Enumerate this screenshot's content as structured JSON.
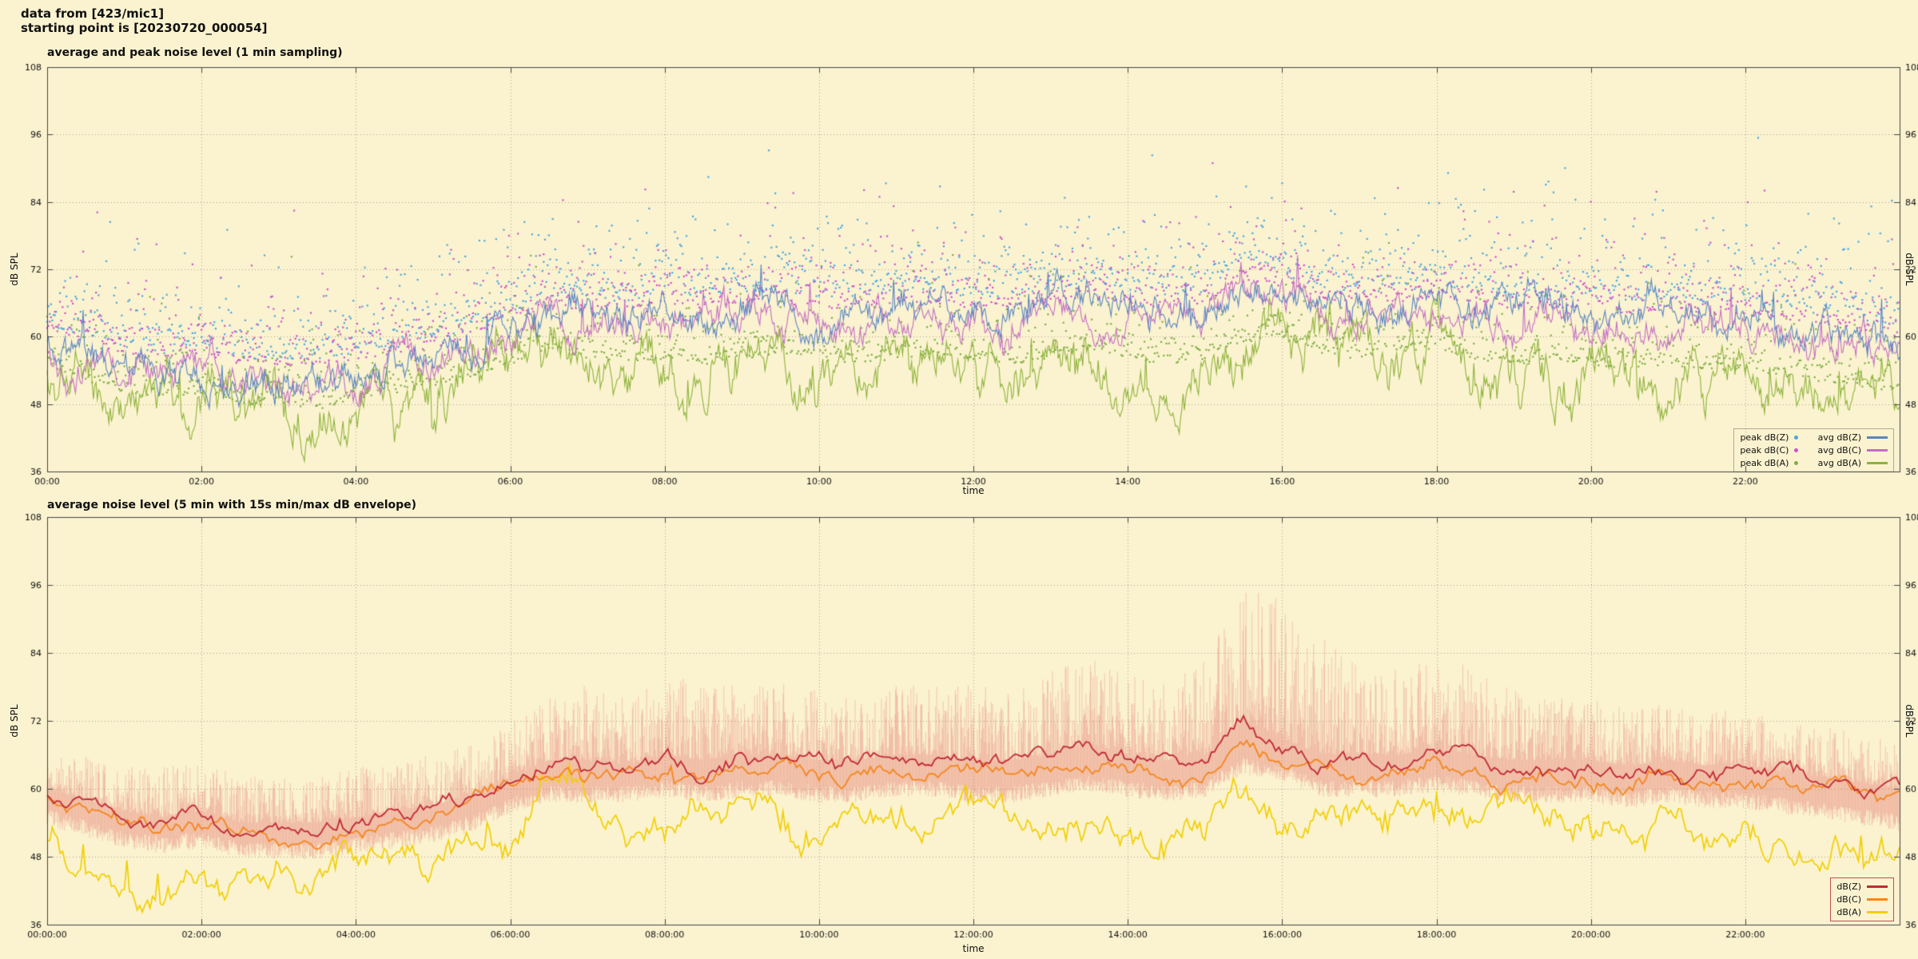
{
  "header": {
    "line1": "data from [423/mic1]",
    "line2": "starting point is [20230720_000054]"
  },
  "colors": {
    "background": "#fbf3d0",
    "grid": "#a8a08a",
    "border": "#444444",
    "text": "#111111",
    "envelope": "rgba(230,115,108,0.30)"
  },
  "chart_data": [
    {
      "type": "line+scatter",
      "title": "average and peak noise level (1 min sampling)",
      "xlabel": "time",
      "ylabel_left": "dB SPL",
      "ylabel_right": "dB SPL",
      "ylim": [
        36,
        108
      ],
      "yticks": [
        36,
        48,
        60,
        72,
        84,
        96,
        108
      ],
      "xlim_hours": [
        0,
        24
      ],
      "xtick_hours": [
        0,
        2,
        4,
        6,
        8,
        10,
        12,
        14,
        16,
        18,
        20,
        22
      ],
      "xtick_labels": [
        "00:00",
        "02:00",
        "04:00",
        "06:00",
        "08:00",
        "10:00",
        "12:00",
        "14:00",
        "16:00",
        "18:00",
        "20:00",
        "22:00"
      ],
      "baseline_step_hours": 0.5,
      "grid": true,
      "legend_position": "bottom-right",
      "legend_columns": [
        [
          "peak dB(Z)",
          "peak dB(C)",
          "peak dB(A)"
        ],
        [
          "avg dB(Z)",
          "avg dB(C)",
          "avg dB(A)"
        ]
      ],
      "series": [
        {
          "name": "peak dB(Z)",
          "kind": "scatter",
          "color": "#4aa7e0",
          "baseline_of": "avg dB(Z)",
          "above_min": 3,
          "tail_scale": 4.5,
          "max": 96,
          "seed": 101
        },
        {
          "name": "peak dB(C)",
          "kind": "scatter",
          "color": "#cc52cc",
          "baseline_of": "avg dB(C)",
          "above_min": 3,
          "tail_scale": 4.0,
          "max": 92,
          "seed": 202
        },
        {
          "name": "peak dB(A)",
          "kind": "scatter",
          "color": "#7fae45",
          "baseline_of": "avg dB(A)",
          "above_min": 2,
          "tail_scale": 3.2,
          "max": 80,
          "seed": 303
        },
        {
          "name": "avg dB(A)",
          "kind": "line",
          "color": "#8db33a",
          "width": 1.1,
          "noise": 2.6,
          "spike_p": 0.02,
          "spike_h": 5,
          "step_min": 1,
          "seed": 33,
          "values": [
            53,
            50,
            48,
            47,
            48,
            46,
            46,
            45,
            47,
            48,
            49,
            51,
            53,
            56,
            54,
            53,
            54,
            53,
            54,
            55,
            54,
            53,
            54,
            55,
            54,
            53,
            54,
            56,
            54,
            53,
            54,
            57,
            58,
            55,
            54,
            55,
            56,
            54,
            53,
            54,
            53,
            52,
            53,
            52,
            52,
            51,
            50,
            49,
            48
          ]
        },
        {
          "name": "avg dB(C)",
          "kind": "line",
          "color": "#c46ec4",
          "width": 1.1,
          "noise": 1.6,
          "spike_p": 0.015,
          "spike_h": 5,
          "step_min": 1,
          "seed": 22,
          "values": [
            58,
            56,
            54,
            53,
            54,
            52,
            52,
            52,
            53,
            54,
            55,
            57,
            60,
            62,
            62,
            62,
            63,
            62,
            63,
            63,
            62,
            62,
            63,
            63,
            62,
            62,
            63,
            64,
            63,
            62,
            63,
            67,
            66,
            63,
            63,
            63,
            64,
            63,
            62,
            62,
            62,
            61,
            62,
            61,
            61,
            60,
            59,
            58,
            57
          ]
        },
        {
          "name": "avg dB(Z)",
          "kind": "line",
          "color": "#5a85c2",
          "width": 1.1,
          "noise": 1.6,
          "spike_p": 0.02,
          "spike_h": 6,
          "step_min": 1,
          "seed": 11,
          "values": [
            59,
            57,
            55,
            54,
            55,
            53,
            53,
            53,
            54,
            55,
            56,
            58,
            61,
            64,
            64,
            63,
            65,
            64,
            65,
            65,
            64,
            64,
            65,
            65,
            64,
            64,
            65,
            67,
            65,
            64,
            65,
            71,
            68,
            65,
            65,
            65,
            66,
            65,
            64,
            64,
            64,
            63,
            64,
            63,
            63,
            62,
            61,
            60,
            59
          ]
        }
      ]
    },
    {
      "type": "line+envelope",
      "title": "average noise level (5 min with 15s min/max dB envelope)",
      "xlabel": "time",
      "ylabel_left": "dB SPL",
      "ylabel_right": "dB SPL",
      "ylim": [
        36,
        108
      ],
      "yticks": [
        36,
        48,
        60,
        72,
        84,
        96,
        108
      ],
      "xlim_hours": [
        0,
        24
      ],
      "xtick_hours": [
        0,
        2,
        4,
        6,
        8,
        10,
        12,
        14,
        16,
        18,
        20,
        22
      ],
      "xtick_labels": [
        "00:00:00",
        "02:00:00",
        "04:00:00",
        "06:00:00",
        "08:00:00",
        "10:00:00",
        "12:00:00",
        "14:00:00",
        "16:00:00",
        "18:00:00",
        "20:00:00",
        "22:00:00"
      ],
      "baseline_step_hours": 0.5,
      "grid": true,
      "legend_position": "bottom-right",
      "legend_columns": [
        [
          "dB(Z)",
          "dB(C)",
          "dB(A)"
        ]
      ],
      "series": [
        {
          "name": "envelope 15s min/max",
          "kind": "envelope",
          "color": "rgba(230,115,108,0.30)",
          "base_of": "dB(Z)",
          "min_of": "dB(C)",
          "seed": 55,
          "max_values": [
            66,
            64,
            62,
            62,
            63,
            61,
            60,
            60,
            62,
            63,
            64,
            66,
            70,
            74,
            76,
            74,
            78,
            76,
            76,
            77,
            75,
            74,
            76,
            77,
            76,
            75,
            78,
            82,
            78,
            76,
            80,
            92,
            90,
            84,
            80,
            80,
            82,
            78,
            75,
            74,
            74,
            72,
            73,
            72,
            72,
            70,
            69,
            68,
            66
          ]
        },
        {
          "name": "dB(A)",
          "kind": "line",
          "color": "#f2cf00",
          "width": 1.7,
          "noise": 1.8,
          "spike_p": 0.03,
          "spike_h": 5,
          "step_min": 2,
          "seed": 77,
          "values": [
            52,
            49,
            46,
            45,
            46,
            44,
            44,
            43,
            45,
            46,
            48,
            50,
            53,
            60,
            57,
            53,
            54,
            53,
            54,
            55,
            54,
            53,
            54,
            55,
            54,
            53,
            54,
            56,
            54,
            53,
            54,
            58,
            57,
            55,
            54,
            55,
            56,
            54,
            53,
            54,
            53,
            52,
            53,
            52,
            52,
            51,
            50,
            48,
            47
          ]
        },
        {
          "name": "dB(C)",
          "kind": "line",
          "color": "#f5861f",
          "width": 1.8,
          "noise": 0.9,
          "spike_p": 0.01,
          "spike_h": 3,
          "step_min": 2.5,
          "seed": 88,
          "values": [
            58,
            56,
            54,
            53,
            54,
            52,
            52,
            52,
            53,
            54,
            55,
            57,
            60,
            62,
            62,
            62,
            63,
            62,
            63,
            63,
            62,
            62,
            63,
            63,
            62,
            62,
            63,
            64,
            63,
            62,
            63,
            67,
            66,
            63,
            63,
            63,
            64,
            63,
            62,
            62,
            62,
            61,
            62,
            61,
            61,
            60,
            59,
            58,
            57
          ]
        },
        {
          "name": "dB(Z)",
          "kind": "line",
          "color": "#c02a33",
          "width": 1.8,
          "noise": 0.9,
          "spike_p": 0.01,
          "spike_h": 3,
          "step_min": 2.5,
          "seed": 99,
          "values": [
            59,
            57,
            55,
            54,
            55,
            53,
            53,
            53,
            54,
            55,
            56,
            58,
            61,
            64,
            64,
            63,
            65,
            64,
            65,
            65,
            64,
            64,
            65,
            65,
            64,
            64,
            65,
            67,
            65,
            64,
            65,
            71,
            68,
            65,
            65,
            65,
            66,
            65,
            64,
            64,
            64,
            63,
            64,
            63,
            63,
            62,
            61,
            60,
            59
          ]
        }
      ]
    }
  ]
}
